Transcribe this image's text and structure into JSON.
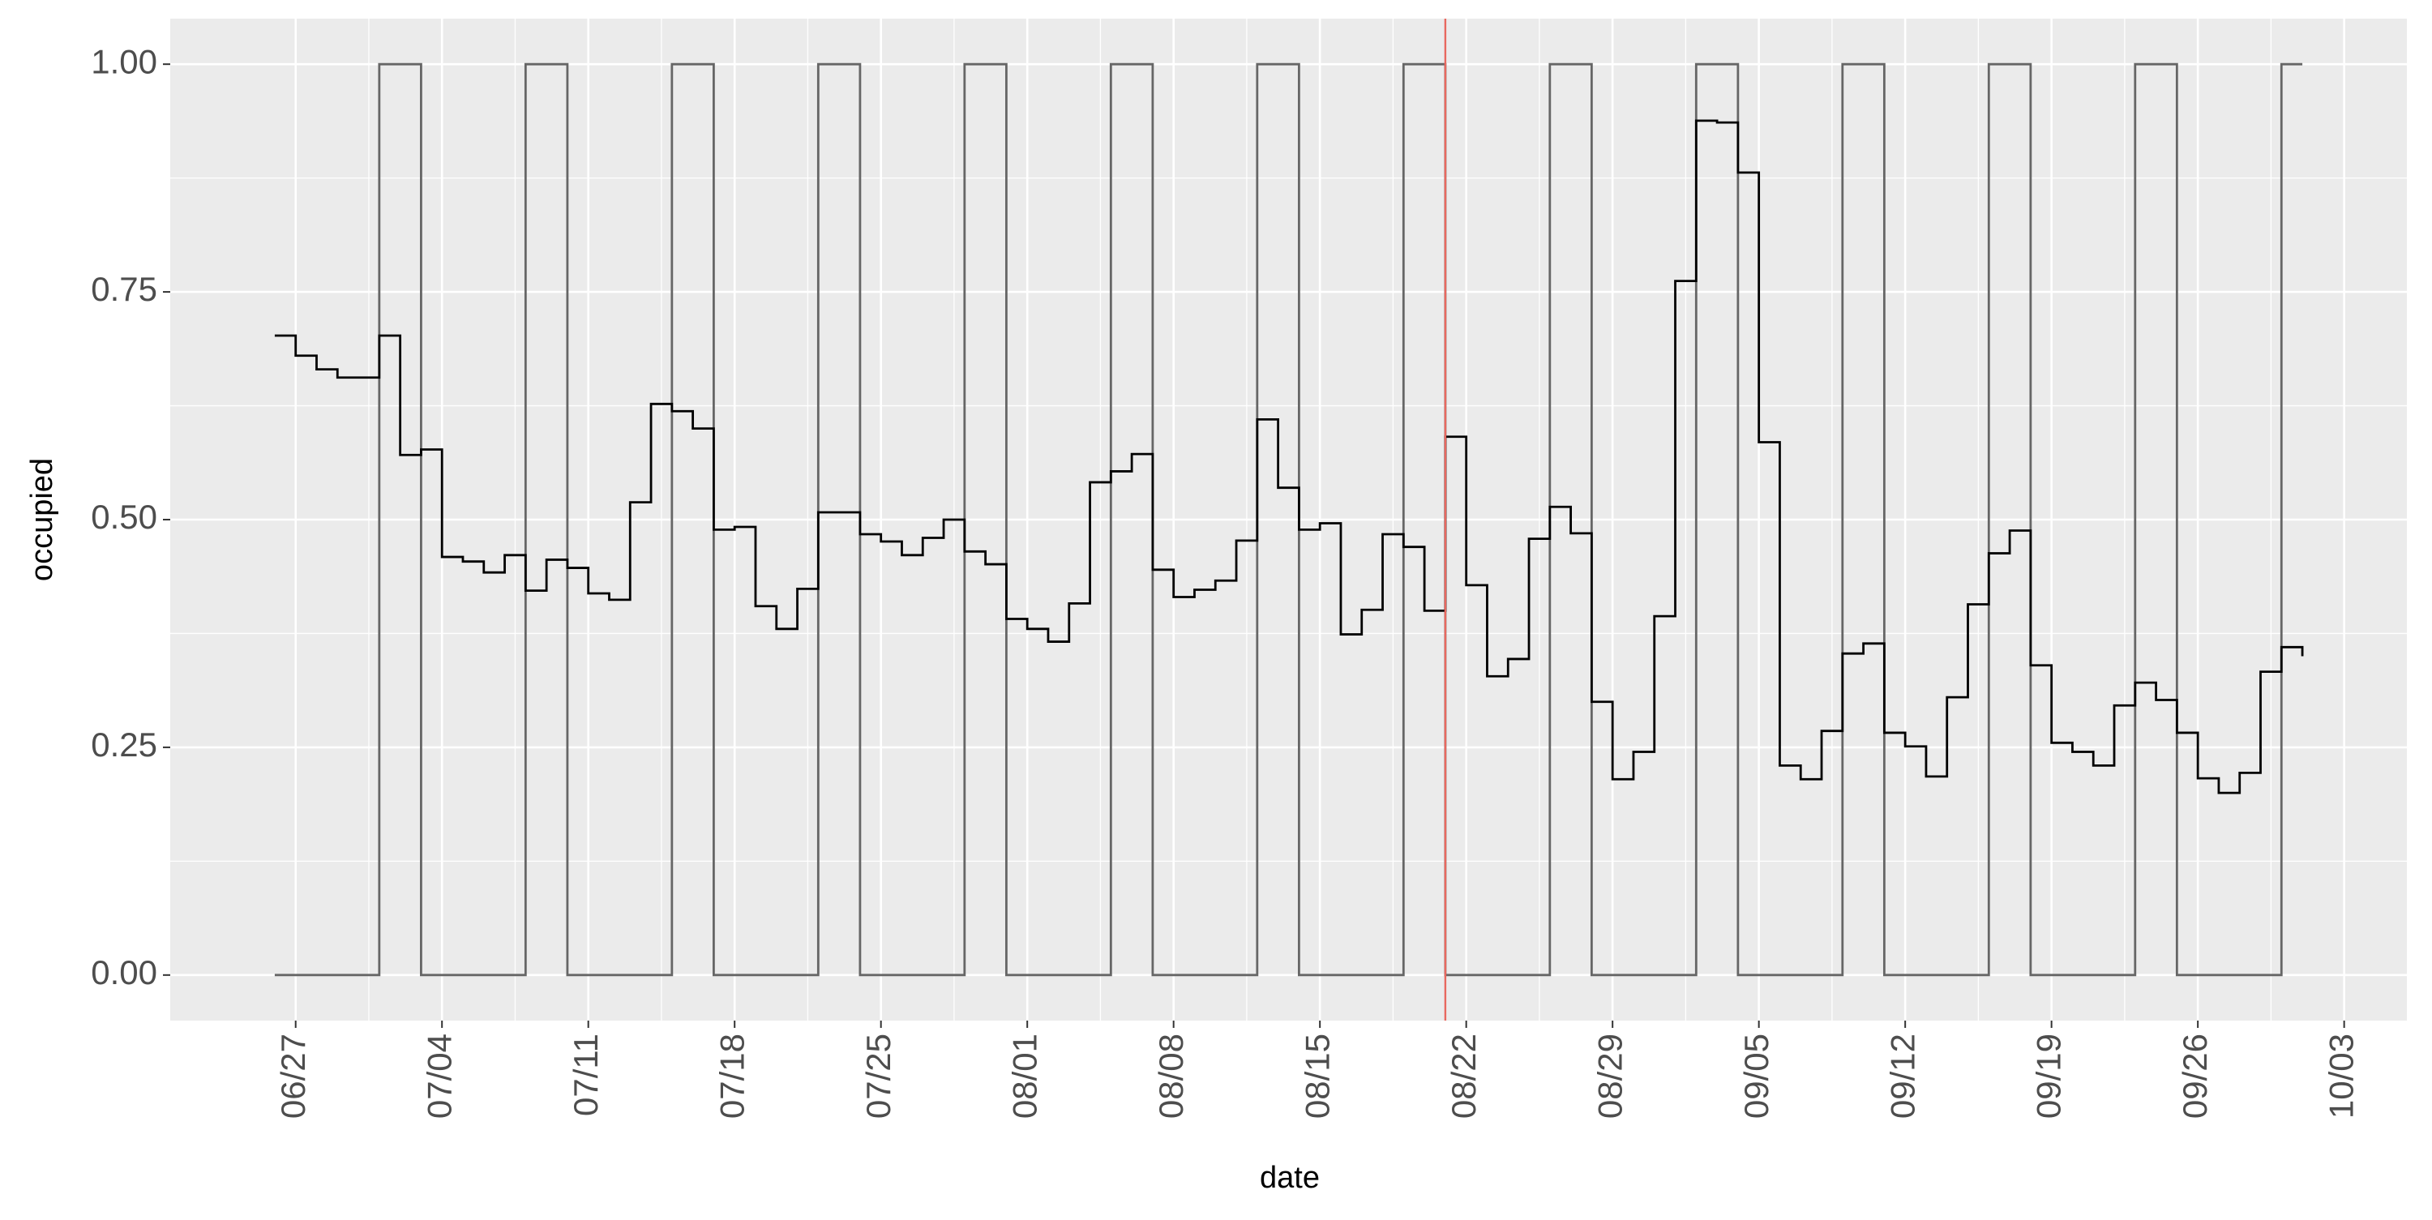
{
  "chart_data": {
    "type": "step",
    "xlabel": "date",
    "ylabel": "occupied",
    "x": [
      "06/26",
      "06/27",
      "06/28",
      "06/29",
      "06/30",
      "07/01",
      "07/02",
      "07/03",
      "07/04",
      "07/05",
      "07/06",
      "07/07",
      "07/08",
      "07/09",
      "07/10",
      "07/11",
      "07/12",
      "07/13",
      "07/14",
      "07/15",
      "07/16",
      "07/17",
      "07/18",
      "07/19",
      "07/20",
      "07/21",
      "07/22",
      "07/23",
      "07/24",
      "07/25",
      "07/26",
      "07/27",
      "07/28",
      "07/29",
      "07/30",
      "07/31",
      "08/01",
      "08/02",
      "08/03",
      "08/04",
      "08/05",
      "08/06",
      "08/07",
      "08/08",
      "08/09",
      "08/10",
      "08/11",
      "08/12",
      "08/13",
      "08/14",
      "08/15",
      "08/16",
      "08/17",
      "08/18",
      "08/19",
      "08/20",
      "08/21",
      "08/22",
      "08/23",
      "08/24",
      "08/25",
      "08/26",
      "08/27",
      "08/28",
      "08/29",
      "08/30",
      "08/31",
      "09/01",
      "09/02",
      "09/03",
      "09/04",
      "09/05",
      "09/06",
      "09/07",
      "09/08",
      "09/09",
      "09/10",
      "09/11",
      "09/12",
      "09/13",
      "09/14",
      "09/15",
      "09/16",
      "09/17",
      "09/18",
      "09/19",
      "09/20",
      "09/21",
      "09/22",
      "09/23",
      "09/24",
      "09/25",
      "09/26",
      "09/27",
      "09/28",
      "09/29",
      "09/30",
      "10/01"
    ],
    "series": [
      {
        "color": "#666666",
        "values": [
          0,
          0,
          0,
          0,
          0,
          1,
          1,
          0,
          0,
          0,
          0,
          0,
          1,
          1,
          0,
          0,
          0,
          0,
          0,
          1,
          1,
          0,
          0,
          0,
          0,
          0,
          1,
          1,
          0,
          0,
          0,
          0,
          0,
          1,
          1,
          0,
          0,
          0,
          0,
          0,
          1,
          1,
          0,
          0,
          0,
          0,
          0,
          1,
          1,
          0,
          0,
          0,
          0,
          0,
          1,
          1,
          0,
          0,
          0,
          0,
          0,
          1,
          1,
          0,
          0,
          0,
          0,
          0,
          1,
          1,
          0,
          0,
          0,
          0,
          0,
          1,
          1,
          0,
          0,
          0,
          0,
          0,
          1,
          1,
          0,
          0,
          0,
          0,
          0,
          1,
          1,
          0,
          0,
          0,
          0,
          0,
          1,
          1
        ]
      },
      {
        "color": "#000000",
        "values": [
          0.702,
          0.68,
          0.665,
          0.656,
          0.656,
          0.702,
          0.571,
          0.577,
          0.459,
          0.454,
          0.442,
          0.461,
          0.422,
          0.456,
          0.447,
          0.419,
          0.412,
          0.519,
          0.627,
          0.619,
          0.6,
          0.489,
          0.492,
          0.405,
          0.38,
          0.424,
          0.508,
          0.508,
          0.484,
          0.476,
          0.461,
          0.48,
          0.5,
          0.465,
          0.451,
          0.391,
          0.38,
          0.366,
          0.408,
          0.541,
          0.553,
          0.572,
          0.445,
          0.415,
          0.423,
          0.433,
          0.477,
          0.61,
          0.535,
          0.489,
          0.496,
          0.374,
          0.401,
          0.484,
          0.47,
          0.4,
          0.591,
          0.428,
          0.328,
          0.347,
          0.479,
          0.514,
          0.485,
          0.3,
          0.215,
          0.245,
          0.394,
          0.762,
          0.938,
          0.936,
          0.881,
          0.585,
          0.23,
          0.215,
          0.268,
          0.353,
          0.364,
          0.266,
          0.251,
          0.218,
          0.305,
          0.407,
          0.463,
          0.488,
          0.34,
          0.255,
          0.245,
          0.23,
          0.296,
          0.321,
          0.302,
          0.266,
          0.216,
          0.2,
          0.222,
          0.333,
          0.36,
          0.35
        ]
      }
    ],
    "vline": {
      "x": "08/21",
      "color": "#e8685f"
    },
    "xlim": [
      "06/21",
      "10/06"
    ],
    "xticks": [
      "06/27",
      "07/04",
      "07/11",
      "07/18",
      "07/25",
      "08/01",
      "08/08",
      "08/15",
      "08/22",
      "08/29",
      "09/05",
      "09/12",
      "09/19",
      "09/26",
      "10/03"
    ],
    "ylim": [
      -0.05,
      1.05
    ],
    "yticks": [
      {
        "value": 0,
        "label": "0.00"
      },
      {
        "value": 0.25,
        "label": "0.25"
      },
      {
        "value": 0.5,
        "label": "0.50"
      },
      {
        "value": 0.75,
        "label": "0.75"
      },
      {
        "value": 1,
        "label": "1.00"
      }
    ],
    "yminor": [
      0.125,
      0.375,
      0.625,
      0.875
    ],
    "grid": true
  }
}
